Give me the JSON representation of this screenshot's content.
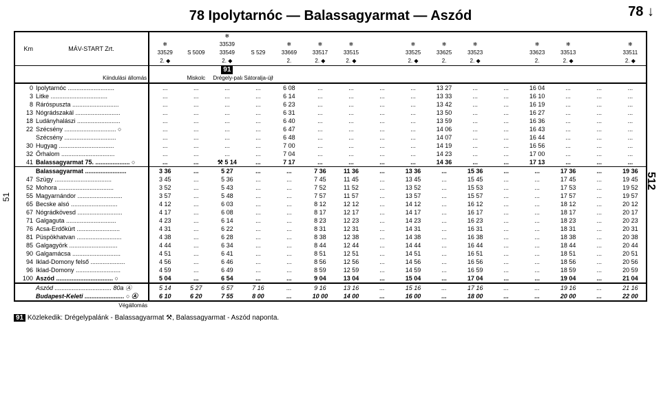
{
  "title": "78 Ipolytarnóc — Balassagyarmat — Aszód",
  "side_right_top": "78 ↓",
  "side_right_mid": "512",
  "side_left_mid": "51",
  "header": {
    "km": "Km",
    "operator": "MÁV-START Zrt.",
    "origin_label": "Kiindulási állomás",
    "origin_cols": [
      "",
      "Miskolc",
      "Drégely-palánk",
      "Sátoralja-újhely"
    ],
    "boxed": "91"
  },
  "train_cols": [
    {
      "no": "33529",
      "sub": "2. ◆",
      "snow": true
    },
    {
      "no": "S 5009",
      "sub": "",
      "snow": false
    },
    {
      "no": "33539\n33549",
      "sub": "2. ◆",
      "snow": true
    },
    {
      "no": "S 529",
      "sub": "",
      "snow": false
    },
    {
      "no": "33669",
      "sub": "2.",
      "snow": true
    },
    {
      "no": "33517",
      "sub": "2. ◆",
      "snow": true
    },
    {
      "no": "33515",
      "sub": "2. ◆",
      "snow": true
    },
    {
      "no": "",
      "sub": "",
      "snow": false
    },
    {
      "no": "33525",
      "sub": "2. ◆",
      "snow": true
    },
    {
      "no": "33625",
      "sub": "2.",
      "snow": true
    },
    {
      "no": "33523",
      "sub": "2. ◆",
      "snow": true
    },
    {
      "no": "",
      "sub": "",
      "snow": false
    },
    {
      "no": "33623",
      "sub": "2.",
      "snow": true
    },
    {
      "no": "33513",
      "sub": "2. ◆",
      "snow": true
    },
    {
      "no": "",
      "sub": "",
      "snow": false
    },
    {
      "no": "33511",
      "sub": "2. ◆",
      "snow": true
    }
  ],
  "rows": [
    {
      "km": "0",
      "st": "Ipolytarnóc",
      "t": [
        "...",
        "...",
        "...",
        "...",
        "6 08",
        "...",
        "...",
        "...",
        "...",
        "13 27",
        "...",
        "...",
        "16 04",
        "...",
        "...",
        "..."
      ]
    },
    {
      "km": "3",
      "st": "Litke",
      "t": [
        "...",
        "...",
        "...",
        "...",
        "6 14",
        "...",
        "...",
        "...",
        "...",
        "13 33",
        "...",
        "...",
        "16 10",
        "...",
        "...",
        "..."
      ]
    },
    {
      "km": "8",
      "st": "Ráróspuszta",
      "t": [
        "...",
        "...",
        "...",
        "...",
        "6 23",
        "...",
        "...",
        "...",
        "...",
        "13 42",
        "...",
        "...",
        "16 19",
        "...",
        "...",
        "..."
      ]
    },
    {
      "km": "13",
      "st": "Nógrádszakál",
      "t": [
        "...",
        "...",
        "...",
        "...",
        "6 31",
        "...",
        "...",
        "...",
        "...",
        "13 50",
        "...",
        "...",
        "16 27",
        "...",
        "...",
        "..."
      ]
    },
    {
      "km": "18",
      "st": "Ludányhalászi",
      "t": [
        "...",
        "...",
        "...",
        "...",
        "6 40",
        "...",
        "...",
        "...",
        "...",
        "13 59",
        "...",
        "...",
        "16 36",
        "...",
        "...",
        "..."
      ]
    },
    {
      "km": "22",
      "st": "Szécsény",
      "suffix": "○",
      "t": [
        "...",
        "...",
        "...",
        "...",
        "6 47",
        "...",
        "...",
        "...",
        "...",
        "14 06",
        "...",
        "...",
        "16 43",
        "...",
        "...",
        "..."
      ]
    },
    {
      "km": "",
      "st": "Szécsény",
      "t": [
        "...",
        "...",
        "...",
        "...",
        "6 48",
        "...",
        "...",
        "...",
        "...",
        "14 07",
        "...",
        "...",
        "16 44",
        "...",
        "...",
        "..."
      ]
    },
    {
      "km": "30",
      "st": "Hugyag",
      "t": [
        "...",
        "...",
        "...",
        "...",
        "7 00",
        "...",
        "...",
        "...",
        "...",
        "14 19",
        "...",
        "...",
        "16 56",
        "...",
        "...",
        "..."
      ]
    },
    {
      "km": "32",
      "st": "Őrhalom",
      "t": [
        "...",
        "...",
        "...",
        "...",
        "7 04",
        "...",
        "...",
        "...",
        "...",
        "14 23",
        "...",
        "...",
        "17 00",
        "...",
        "...",
        "..."
      ]
    },
    {
      "km": "41",
      "st": "Balassagyarmat 75.",
      "suffix": "○",
      "bold": true,
      "t": [
        "...",
        "...",
        "⚒ 5 14",
        "...",
        "7 17",
        "...",
        "...",
        "...",
        "...",
        "14 36",
        "...",
        "...",
        "17 13",
        "...",
        "...",
        "..."
      ]
    },
    {
      "km": "",
      "st": "Balassagyarmat",
      "bold": true,
      "t": [
        "3 36",
        "...",
        "5 27",
        "...",
        "...",
        "7 36",
        "11 36",
        "...",
        "13 36",
        "...",
        "15 36",
        "...",
        "...",
        "17 36",
        "...",
        "19 36"
      ]
    },
    {
      "km": "47",
      "st": "Szügy",
      "t": [
        "3 45",
        "...",
        "5 36",
        "...",
        "...",
        "7 45",
        "11 45",
        "...",
        "13 45",
        "...",
        "15 45",
        "...",
        "...",
        "17 45",
        "...",
        "19 45"
      ]
    },
    {
      "km": "52",
      "st": "Mohora",
      "t": [
        "3 52",
        "...",
        "5 43",
        "...",
        "...",
        "7 52",
        "11 52",
        "...",
        "13 52",
        "...",
        "15 53",
        "...",
        "...",
        "17 53",
        "...",
        "19 52"
      ]
    },
    {
      "km": "55",
      "st": "Magyarnándor",
      "t": [
        "3 57",
        "...",
        "5 48",
        "...",
        "...",
        "7 57",
        "11 57",
        "...",
        "13 57",
        "...",
        "15 57",
        "...",
        "...",
        "17 57",
        "...",
        "19 57"
      ]
    },
    {
      "km": "65",
      "st": "Becske alsó",
      "t": [
        "4 12",
        "...",
        "6 03",
        "...",
        "...",
        "8 12",
        "12 12",
        "...",
        "14 12",
        "...",
        "16 12",
        "...",
        "...",
        "18 12",
        "...",
        "20 12"
      ]
    },
    {
      "km": "67",
      "st": "Nógrádkövesd",
      "t": [
        "4 17",
        "...",
        "6 08",
        "...",
        "...",
        "8 17",
        "12 17",
        "...",
        "14 17",
        "...",
        "16 17",
        "...",
        "...",
        "18 17",
        "...",
        "20 17"
      ]
    },
    {
      "km": "71",
      "st": "Galgaguta",
      "t": [
        "4 23",
        "...",
        "6 14",
        "...",
        "...",
        "8 23",
        "12 23",
        "...",
        "14 23",
        "...",
        "16 23",
        "...",
        "...",
        "18 23",
        "...",
        "20 23"
      ]
    },
    {
      "km": "76",
      "st": "Acsa-Erdőkürt",
      "t": [
        "4 31",
        "...",
        "6 22",
        "...",
        "...",
        "8 31",
        "12 31",
        "...",
        "14 31",
        "...",
        "16 31",
        "...",
        "...",
        "18 31",
        "...",
        "20 31"
      ]
    },
    {
      "km": "81",
      "st": "Püspökhatvan",
      "t": [
        "4 38",
        "...",
        "6 28",
        "...",
        "...",
        "8 38",
        "12 38",
        "...",
        "14 38",
        "...",
        "16 38",
        "...",
        "...",
        "18 38",
        "...",
        "20 38"
      ]
    },
    {
      "km": "85",
      "st": "Galgagyörk",
      "t": [
        "4 44",
        "...",
        "6 34",
        "...",
        "...",
        "8 44",
        "12 44",
        "...",
        "14 44",
        "...",
        "16 44",
        "...",
        "...",
        "18 44",
        "...",
        "20 44"
      ]
    },
    {
      "km": "90",
      "st": "Galgamácsa",
      "t": [
        "4 51",
        "...",
        "6 41",
        "...",
        "...",
        "8 51",
        "12 51",
        "...",
        "14 51",
        "...",
        "16 51",
        "...",
        "...",
        "18 51",
        "...",
        "20 51"
      ]
    },
    {
      "km": "94",
      "st": "Iklad-Domony felső",
      "t": [
        "4 56",
        "...",
        "6 46",
        "...",
        "...",
        "8 56",
        "12 56",
        "...",
        "14 56",
        "...",
        "16 56",
        "...",
        "...",
        "18 56",
        "...",
        "20 56"
      ]
    },
    {
      "km": "96",
      "st": "Iklad-Domony",
      "t": [
        "4 59",
        "...",
        "6 49",
        "...",
        "...",
        "8 59",
        "12 59",
        "...",
        "14 59",
        "...",
        "16 59",
        "...",
        "...",
        "18 59",
        "...",
        "20 59"
      ]
    },
    {
      "km": "100",
      "st": "Aszód",
      "suffix": "○",
      "bold": true,
      "t": [
        "5 04",
        "...",
        "6 54",
        "...",
        "...",
        "9 04",
        "13 04",
        "...",
        "15 04",
        "...",
        "17 04",
        "...",
        "...",
        "19 04",
        "...",
        "21 04"
      ]
    }
  ],
  "extra_rows": [
    {
      "st": "Aszód",
      "suffix": "80a",
      "sym": "Ⓐ",
      "ital": true,
      "t": [
        "5 14",
        "5 27",
        "6 57",
        "7 16",
        "...",
        "9 16",
        "13 16",
        "...",
        "15 16",
        "...",
        "17 16",
        "...",
        "...",
        "19 16",
        "...",
        "21 16"
      ]
    },
    {
      "st": "Budapest-Keleti",
      "suffix": "○",
      "sym": "Ⓐ",
      "ital": true,
      "bold": true,
      "t": [
        "6 10",
        "6 20",
        "7 55",
        "8 00",
        "...",
        "10 00",
        "14 00",
        "...",
        "16 00",
        "...",
        "18 00",
        "...",
        "...",
        "20 00",
        "...",
        "22 00"
      ]
    }
  ],
  "vegallomas": "Végállomás",
  "footnote": "Közlekedik: Drégelypalánk - Balassagyarmat ⚒, Balassagyarmat - Aszód naponta."
}
